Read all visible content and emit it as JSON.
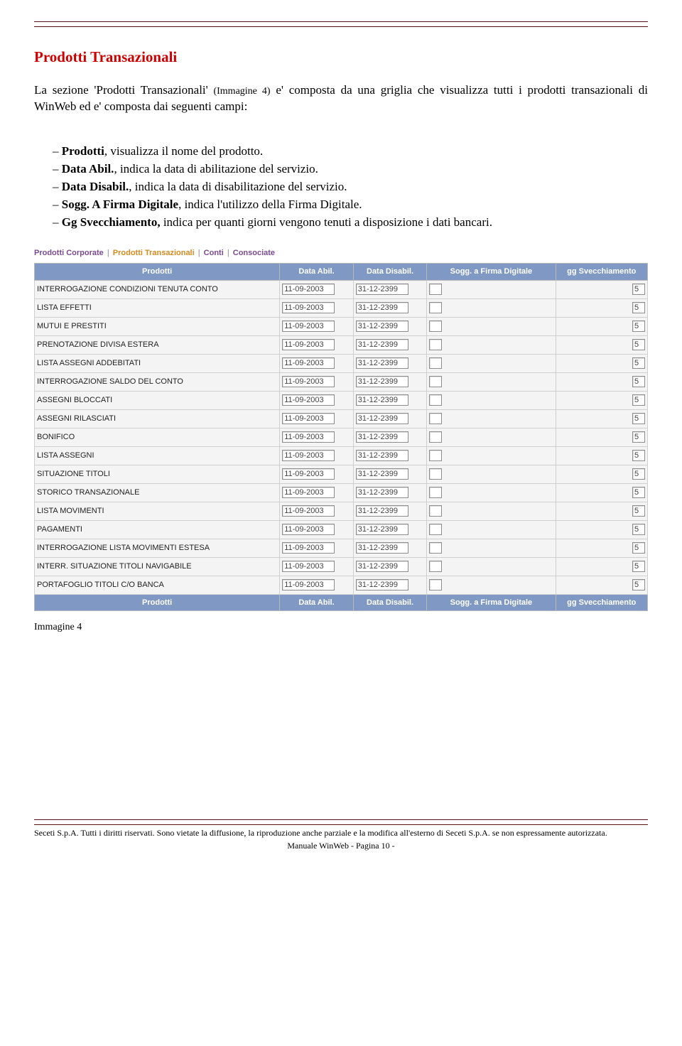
{
  "heading": "Prodotti Transazionali",
  "intro_1": "La sezione 'Prodotti Transazionali' ",
  "intro_ref": "(Immagine 4)",
  "intro_2": " e' composta da una griglia che visualizza tutti i prodotti transazionali di WinWeb ed e' composta dai seguenti campi:",
  "bullets": [
    {
      "b": "Prodotti",
      "r": ", visualizza il nome del prodotto."
    },
    {
      "b": "Data Abil.",
      "r": ", indica la data di abilitazione del servizio."
    },
    {
      "b": "Data Disabil.",
      "r": ", indica la data di disabilitazione del servizio."
    },
    {
      "b": "Sogg. A Firma Digitale",
      "r": ", indica l'utilizzo della Firma Digitale."
    },
    {
      "b": "Gg Svecchiamento,",
      "r": " indica per quanti giorni vengono tenuti a disposizione i dati bancari."
    }
  ],
  "tabs": [
    "Prodotti Corporate",
    "Prodotti Transazionali",
    "Conti",
    "Consociate"
  ],
  "tabs_active_index": 1,
  "table": {
    "columns": [
      "Prodotti",
      "Data Abil.",
      "Data Disabil.",
      "Sogg. a Firma Digitale",
      "gg Svecchiamento"
    ],
    "rows": [
      {
        "p": "INTERROGAZIONE CONDIZIONI TENUTA CONTO",
        "a": "11-09-2003",
        "d": "31-12-2399",
        "s": "",
        "g": "5"
      },
      {
        "p": "LISTA EFFETTI",
        "a": "11-09-2003",
        "d": "31-12-2399",
        "s": "",
        "g": "5"
      },
      {
        "p": "MUTUI E PRESTITI",
        "a": "11-09-2003",
        "d": "31-12-2399",
        "s": "",
        "g": "5"
      },
      {
        "p": "PRENOTAZIONE DIVISA ESTERA",
        "a": "11-09-2003",
        "d": "31-12-2399",
        "s": "",
        "g": "5"
      },
      {
        "p": "LISTA ASSEGNI ADDEBITATI",
        "a": "11-09-2003",
        "d": "31-12-2399",
        "s": "",
        "g": "5"
      },
      {
        "p": "INTERROGAZIONE SALDO DEL CONTO",
        "a": "11-09-2003",
        "d": "31-12-2399",
        "s": "",
        "g": "5"
      },
      {
        "p": "ASSEGNI BLOCCATI",
        "a": "11-09-2003",
        "d": "31-12-2399",
        "s": "",
        "g": "5"
      },
      {
        "p": "ASSEGNI RILASCIATI",
        "a": "11-09-2003",
        "d": "31-12-2399",
        "s": "",
        "g": "5"
      },
      {
        "p": "BONIFICO",
        "a": "11-09-2003",
        "d": "31-12-2399",
        "s": "",
        "g": "5"
      },
      {
        "p": "LISTA ASSEGNI",
        "a": "11-09-2003",
        "d": "31-12-2399",
        "s": "",
        "g": "5"
      },
      {
        "p": "SITUAZIONE TITOLI",
        "a": "11-09-2003",
        "d": "31-12-2399",
        "s": "",
        "g": "5"
      },
      {
        "p": "STORICO TRANSAZIONALE",
        "a": "11-09-2003",
        "d": "31-12-2399",
        "s": "",
        "g": "5"
      },
      {
        "p": "LISTA MOVIMENTI",
        "a": "11-09-2003",
        "d": "31-12-2399",
        "s": "",
        "g": "5"
      },
      {
        "p": "PAGAMENTI",
        "a": "11-09-2003",
        "d": "31-12-2399",
        "s": "",
        "g": "5"
      },
      {
        "p": "INTERROGAZIONE LISTA MOVIMENTI ESTESA",
        "a": "11-09-2003",
        "d": "31-12-2399",
        "s": "",
        "g": "5"
      },
      {
        "p": "INTERR. SITUAZIONE TITOLI NAVIGABILE",
        "a": "11-09-2003",
        "d": "31-12-2399",
        "s": "",
        "g": "5"
      },
      {
        "p": "PORTAFOGLIO TITOLI C/O BANCA",
        "a": "11-09-2003",
        "d": "31-12-2399",
        "s": "",
        "g": "5"
      }
    ]
  },
  "caption": "Immagine 4",
  "footer_line": "Seceti S.p.A. Tutti i diritti riservati. Sono vietate la diffusione, la riproduzione anche parziale e la modifica all'esterno di Seceti S.p.A. se non espressamente autorizzata.",
  "footer_center": "Manuale WinWeb - Pagina 10 -"
}
